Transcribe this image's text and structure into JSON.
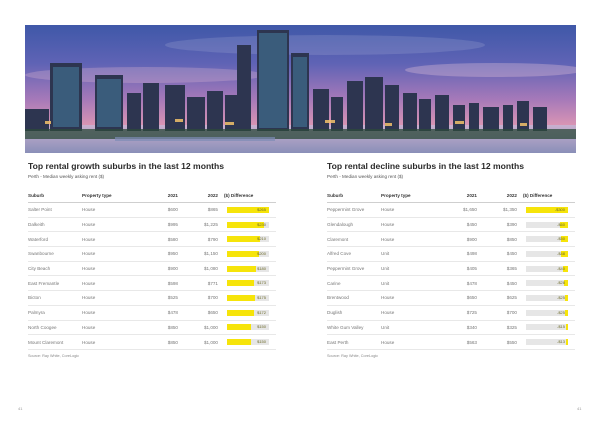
{
  "growth": {
    "title": "Top rental growth suburbs in the last 12 months",
    "subtitle": "Perth - Median weekly asking rent ($)",
    "headers": [
      "Suburb",
      "Property type",
      "2021",
      "2022",
      "($) Difference"
    ],
    "rows": [
      {
        "suburb": "Salter Point",
        "type": "House",
        "y2021": "$600",
        "y2022": "$865",
        "diff": "$265",
        "level": 1.0
      },
      {
        "suburb": "Dalkeith",
        "type": "House",
        "y2021": "$995",
        "y2022": "$1,225",
        "diff": "$230",
        "level": 0.87
      },
      {
        "suburb": "Waterford",
        "type": "House",
        "y2021": "$580",
        "y2022": "$790",
        "diff": "$210",
        "level": 0.79
      },
      {
        "suburb": "Swanbourne",
        "type": "House",
        "y2021": "$950",
        "y2022": "$1,150",
        "diff": "$200",
        "level": 0.75
      },
      {
        "suburb": "City Beach",
        "type": "House",
        "y2021": "$900",
        "y2022": "$1,080",
        "diff": "$180",
        "level": 0.68
      },
      {
        "suburb": "East Fremantle",
        "type": "House",
        "y2021": "$598",
        "y2022": "$771",
        "diff": "$173",
        "level": 0.65
      },
      {
        "suburb": "Bicton",
        "type": "House",
        "y2021": "$525",
        "y2022": "$700",
        "diff": "$175",
        "level": 0.66
      },
      {
        "suburb": "Palmyra",
        "type": "House",
        "y2021": "$478",
        "y2022": "$650",
        "diff": "$172",
        "level": 0.65
      },
      {
        "suburb": "North Coogee",
        "type": "House",
        "y2021": "$850",
        "y2022": "$1,000",
        "diff": "$150",
        "level": 0.57
      },
      {
        "suburb": "Mount Claremont",
        "type": "House",
        "y2021": "$850",
        "y2022": "$1,000",
        "diff": "$150",
        "level": 0.57
      }
    ],
    "source": "Source: Ray White, CoreLogic",
    "page_number": "41"
  },
  "decline": {
    "title": "Top rental decline suburbs in the last 12 months",
    "subtitle": "Perth - Median weekly asking rent ($)",
    "headers": [
      "Suburb",
      "Property type",
      "2021",
      "2022",
      "($) Difference"
    ],
    "rows": [
      {
        "suburb": "Peppermint Grove",
        "type": "House",
        "y2021": "$1,650",
        "y2022": "$1,350",
        "diff": "-$300",
        "level": 1.0
      },
      {
        "suburb": "Glendalough",
        "type": "House",
        "y2021": "$450",
        "y2022": "$390",
        "diff": "-$60",
        "level": 0.2
      },
      {
        "suburb": "Claremont",
        "type": "House",
        "y2021": "$900",
        "y2022": "$850",
        "diff": "-$50",
        "level": 0.17
      },
      {
        "suburb": "Alfred Cove",
        "type": "Unit",
        "y2021": "$498",
        "y2022": "$450",
        "diff": "-$48",
        "level": 0.16
      },
      {
        "suburb": "Peppermint Grove",
        "type": "Unit",
        "y2021": "$405",
        "y2022": "$365",
        "diff": "-$40",
        "level": 0.13
      },
      {
        "suburb": "Carine",
        "type": "Unit",
        "y2021": "$478",
        "y2022": "$450",
        "diff": "-$28",
        "level": 0.09
      },
      {
        "suburb": "Brentwood",
        "type": "House",
        "y2021": "$650",
        "y2022": "$625",
        "diff": "-$25",
        "level": 0.08
      },
      {
        "suburb": "Duglish",
        "type": "House",
        "y2021": "$725",
        "y2022": "$700",
        "diff": "-$25",
        "level": 0.08
      },
      {
        "suburb": "White Gum Valley",
        "type": "Unit",
        "y2021": "$340",
        "y2022": "$325",
        "diff": "-$15",
        "level": 0.05
      },
      {
        "suburb": "East Perth",
        "type": "House",
        "y2021": "$563",
        "y2022": "$550",
        "diff": "-$13",
        "level": 0.04
      }
    ],
    "source": "Source: Ray White, CoreLogic",
    "page_number": "41"
  },
  "colors": {
    "bar_fill": "#f6e40a",
    "bar_track": "#e6e6e6",
    "title": "#2a2a2a"
  }
}
